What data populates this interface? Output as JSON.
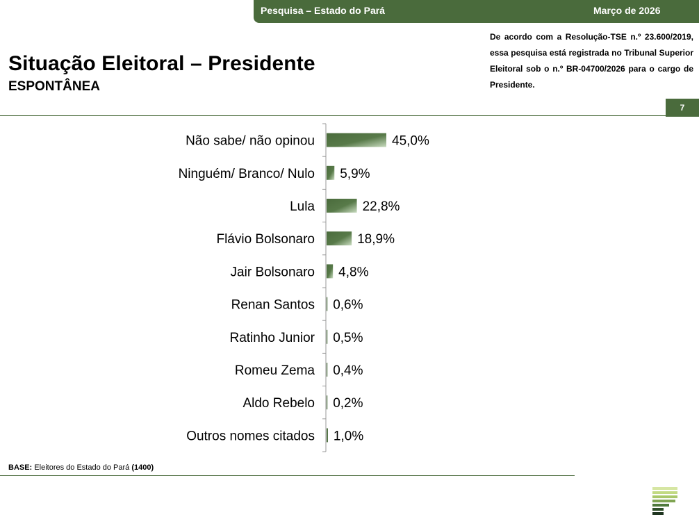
{
  "header": {
    "survey_label": "Pesquisa – Estado do Pará",
    "date_label": "Março de 2026",
    "title": "Situação Eleitoral – Presidente",
    "subtitle": "ESPONTÂNEA",
    "legal_text": "De acordo com a Resolução-TSE n.º 23.600/2019, essa pesquisa está registrada no Tribunal Superior Eleitoral sob o n.º BR-04700/2026 para o cargo de Presidente.",
    "page_number": "7"
  },
  "footer": {
    "base_label": "BASE:",
    "base_text": "Eleitores do Estado do Pará",
    "base_count": "(1400)"
  },
  "colors": {
    "brand_green": "#4a6b3c",
    "bar_light": "#c9dcc0",
    "bar_dark": "#4a6b3c"
  },
  "logo_icon": "company-logo-icon",
  "chart_data": {
    "type": "bar",
    "orientation": "horizontal",
    "categories": [
      "Não sabe/ não opinou",
      "Ninguém/ Branco/ Nulo",
      "Lula",
      "Flávio Bolsonaro",
      "Jair Bolsonaro",
      "Renan Santos",
      "Ratinho Junior",
      "Romeu Zema",
      "Aldo Rebelo",
      "Outros nomes citados"
    ],
    "values": [
      45.0,
      5.9,
      22.8,
      18.9,
      4.8,
      0.6,
      0.5,
      0.4,
      0.2,
      1.0
    ],
    "data_labels": [
      "45,0%",
      "5,9%",
      "22,8%",
      "18,9%",
      "4,8%",
      "0,6%",
      "0,5%",
      "0,4%",
      "0,2%",
      "1,0%"
    ],
    "unit": "%",
    "xlim": [
      0,
      100
    ],
    "grid": false,
    "legend": "none"
  }
}
